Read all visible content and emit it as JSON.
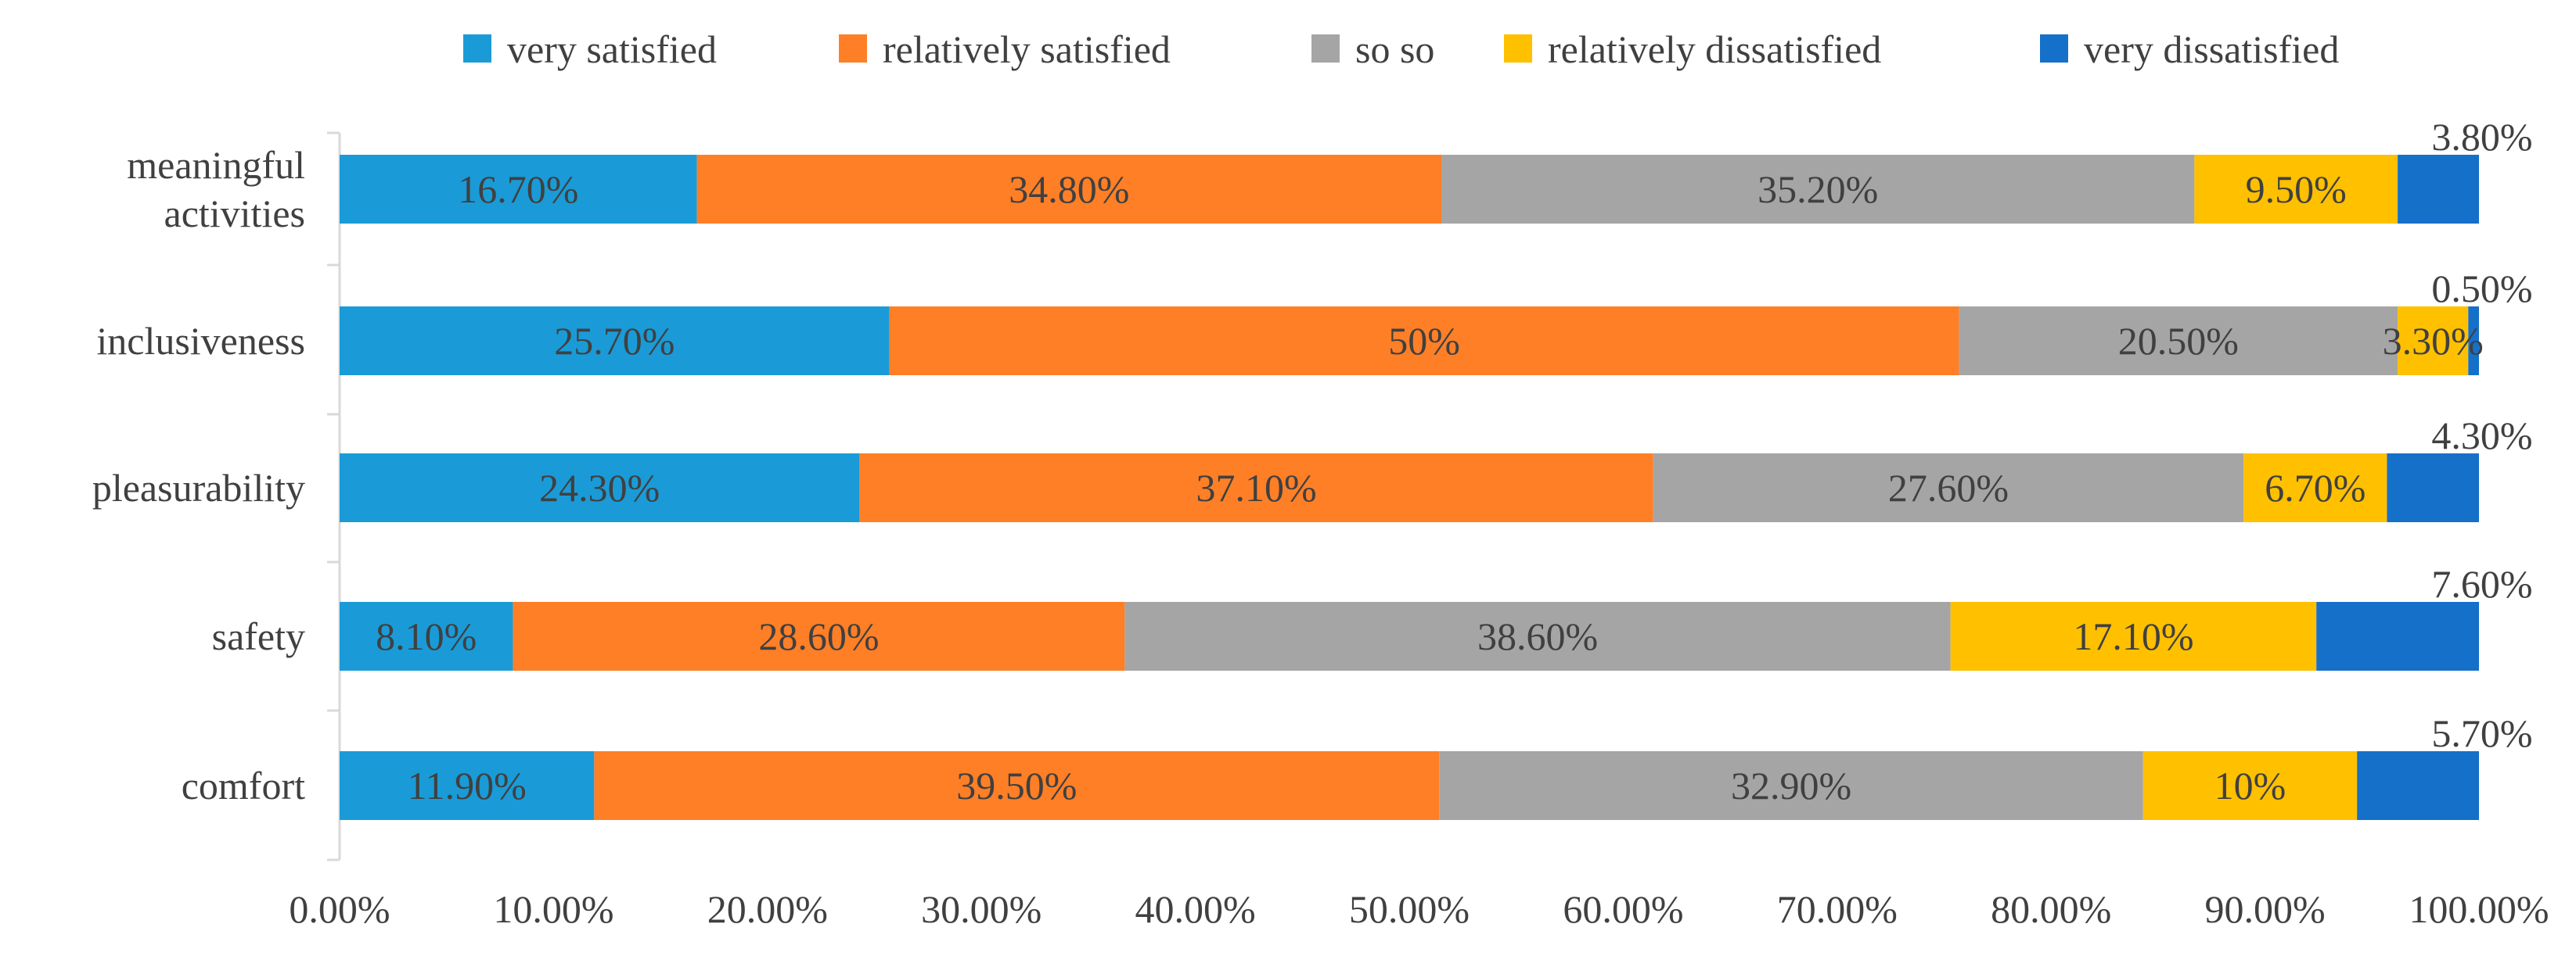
{
  "chart_data": {
    "type": "bar",
    "orientation": "horizontal",
    "stacked": true,
    "categories": [
      "meaningful activities",
      "inclusiveness",
      "pleasurability",
      "safety",
      "comfort"
    ],
    "category_display": [
      [
        "meaningful",
        "activities"
      ],
      [
        "inclusiveness"
      ],
      [
        "pleasurability"
      ],
      [
        "safety"
      ],
      [
        "comfort"
      ]
    ],
    "series": [
      {
        "name": "very satisfied",
        "color": "#1A9BD7",
        "values": [
          16.7,
          25.7,
          24.3,
          8.1,
          11.9
        ],
        "labels": [
          "16.70%",
          "25.70%",
          "24.30%",
          "8.10%",
          "11.90%"
        ]
      },
      {
        "name": "relatively satisfied",
        "color": "#FF7F27",
        "values": [
          34.8,
          50,
          37.1,
          28.6,
          39.5
        ],
        "labels": [
          "34.80%",
          "50%",
          "37.10%",
          "28.60%",
          "39.50%"
        ]
      },
      {
        "name": "so so",
        "color": "#A5A5A5",
        "values": [
          35.2,
          20.5,
          27.6,
          38.6,
          32.9
        ],
        "labels": [
          "35.20%",
          "20.50%",
          "27.60%",
          "38.60%",
          "32.90%"
        ]
      },
      {
        "name": "relatively dissatisfied",
        "color": "#FFC000",
        "values": [
          9.5,
          3.3,
          6.7,
          17.1,
          10
        ],
        "labels": [
          "9.50%",
          "3.30%",
          "6.70%",
          "17.10%",
          "10%"
        ]
      },
      {
        "name": "very dissatisfied",
        "color": "#1570C9",
        "values": [
          3.8,
          0.5,
          4.3,
          7.6,
          5.7
        ],
        "labels": [
          "3.80%",
          "0.50%",
          "4.30%",
          "7.60%",
          "5.70%"
        ]
      }
    ],
    "x_range": [
      0,
      100
    ],
    "x_ticks": [
      "0.00%",
      "10.00%",
      "20.00%",
      "30.00%",
      "40.00%",
      "50.00%",
      "60.00%",
      "70.00%",
      "80.00%",
      "90.00%",
      "100.00%"
    ],
    "legend_position": "top",
    "grid": false,
    "title": "",
    "xlabel": "",
    "ylabel": ""
  }
}
